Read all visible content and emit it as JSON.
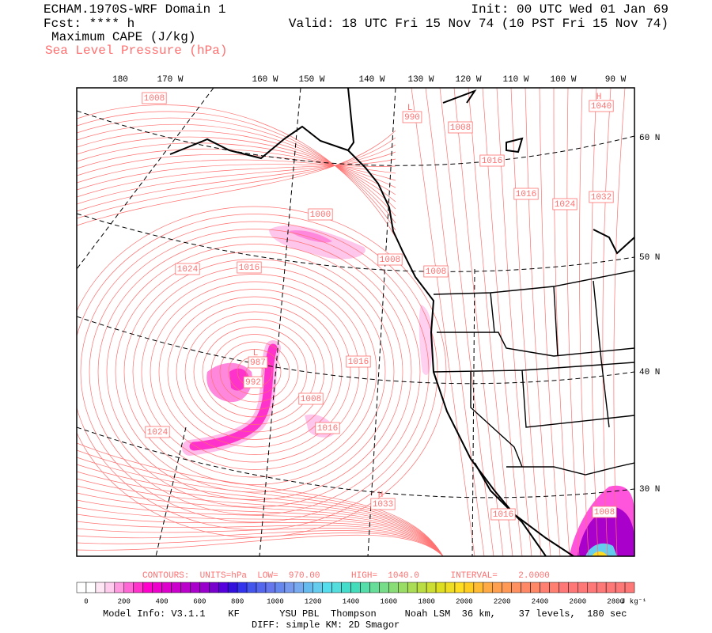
{
  "header": {
    "title": "ECHAM.1970S-WRF Domain 1",
    "forecast": "Fcst: **** h",
    "field": "Maximum CAPE (J/kg)",
    "contour_field": "Sea Level Pressure (hPa)",
    "init": "Init: 00 UTC Wed 01 Jan 69",
    "valid": "Valid: 18 UTC Fri 15 Nov 74 (10 PST Fri 15 Nov 74)"
  },
  "map": {
    "longitude_labels": [
      "180",
      "170 W",
      "160 W",
      "150 W",
      "140 W",
      "130 W",
      "120 W",
      "110 W",
      "100 W",
      "90 W"
    ],
    "latitude_labels": [
      "60 N",
      "50 N",
      "40 N",
      "30 N"
    ],
    "pressure_labels": [
      "1008",
      "1008",
      "1016",
      "1016",
      "1024",
      "1032",
      "1000",
      "1008",
      "1008",
      "1024",
      "1016",
      "1016",
      "992",
      "1008",
      "1016",
      "1024",
      "1016",
      "1008"
    ],
    "centers": [
      {
        "letter": "L",
        "value": "990"
      },
      {
        "letter": "H",
        "value": "1040"
      },
      {
        "letter": "L",
        "value": "987"
      },
      {
        "letter": "H",
        "value": "1033"
      }
    ]
  },
  "contour_info": "CONTOURS:  UNITS=hPa  LOW=  970.00      HIGH=  1040.0      INTERVAL=    2.0000",
  "colorbar": {
    "lim": [
      -50,
      2900
    ],
    "ticks": [
      0,
      200,
      400,
      600,
      800,
      1000,
      1200,
      1400,
      1600,
      1800,
      2000,
      2200,
      2400,
      2600,
      2800
    ],
    "unit": "J kg⁻¹",
    "colors": [
      "#ffffff",
      "#ffffff",
      "#ffe6f5",
      "#ffccee",
      "#ff99e0",
      "#ff66d6",
      "#ff33cc",
      "#ff00cc",
      "#ee00cc",
      "#dd00cc",
      "#cc00cc",
      "#bb00cc",
      "#aa00cc",
      "#9900cc",
      "#7700cc",
      "#5500dd",
      "#3311dd",
      "#3333ee",
      "#4455ee",
      "#5566ee",
      "#6677ee",
      "#6688ee",
      "#7799ee",
      "#77aaee",
      "#66bbee",
      "#66ccee",
      "#55ddee",
      "#55dddd",
      "#44ddcc",
      "#44ddbb",
      "#55ddaa",
      "#66dd99",
      "#77dd88",
      "#88dd77",
      "#99dd66",
      "#aadd55",
      "#bbdd44",
      "#ccdd33",
      "#dddd22",
      "#eedd22",
      "#ffdd22",
      "#ffcc22",
      "#ffbb33",
      "#ffaa44",
      "#ffa050",
      "#ff9955",
      "#ff9060",
      "#ff8866",
      "#ff8866",
      "#ff8070",
      "#ff8070",
      "#ff7878",
      "#ff7878",
      "#ff7878",
      "#ff7878",
      "#ff7878",
      "#ff7878",
      "#ff7878",
      "#ff7878"
    ]
  },
  "footer": {
    "model_info": "Model Info: V3.1.1    KF       YSU PBL  Thompson     Noah LSM  36 km,    37 levels,  180 sec",
    "diff": "DIFF: simple KM: 2D Smagor"
  }
}
